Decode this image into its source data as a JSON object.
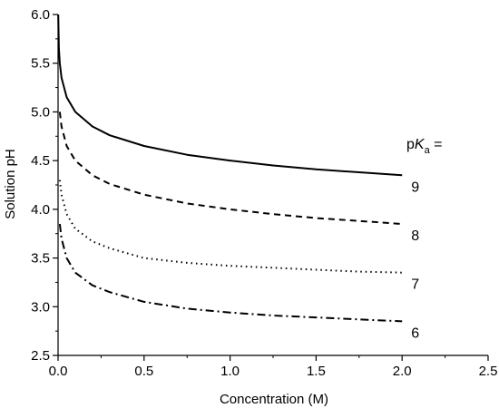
{
  "chart_data": {
    "type": "line",
    "title": "",
    "xlabel": "Concentration (M)",
    "ylabel": "Solution pH",
    "xlim": [
      0,
      2.5
    ],
    "ylim": [
      2.5,
      6.0
    ],
    "x_ticks": [
      "0.0",
      "0.5",
      "1.0",
      "1.5",
      "2.0",
      "2.5"
    ],
    "y_ticks": [
      "2.5",
      "3.0",
      "3.5",
      "4.0",
      "4.5",
      "5.0",
      "5.5",
      "6.0"
    ],
    "grid": false,
    "legend": {
      "prefix": "p",
      "italic": "K",
      "subscript": "a",
      "suffix": " ="
    },
    "series": [
      {
        "name": "9",
        "line_style": "solid",
        "x": [
          0.001,
          0.005,
          0.01,
          0.02,
          0.05,
          0.1,
          0.2,
          0.3,
          0.5,
          0.75,
          1.0,
          1.25,
          1.5,
          1.75,
          2.0
        ],
        "y": [
          6.0,
          5.65,
          5.5,
          5.35,
          5.15,
          5.0,
          4.85,
          4.76,
          4.65,
          4.56,
          4.5,
          4.45,
          4.41,
          4.38,
          4.35
        ]
      },
      {
        "name": "8",
        "line_style": "dashed",
        "x": [
          0.01,
          0.02,
          0.05,
          0.1,
          0.2,
          0.3,
          0.5,
          0.75,
          1.0,
          1.25,
          1.5,
          1.75,
          2.0
        ],
        "y": [
          5.0,
          4.85,
          4.65,
          4.5,
          4.35,
          4.26,
          4.15,
          4.06,
          4.0,
          3.95,
          3.91,
          3.88,
          3.85
        ]
      },
      {
        "name": "7",
        "line_style": "dotted",
        "x": [
          0.01,
          0.02,
          0.05,
          0.1,
          0.2,
          0.3,
          0.5,
          0.75,
          1.0,
          1.25,
          1.5,
          1.75,
          2.0
        ],
        "y": [
          4.3,
          4.15,
          3.95,
          3.8,
          3.67,
          3.6,
          3.5,
          3.45,
          3.42,
          3.4,
          3.38,
          3.36,
          3.35
        ]
      },
      {
        "name": "6",
        "line_style": "dashdot",
        "x": [
          0.01,
          0.02,
          0.05,
          0.1,
          0.2,
          0.3,
          0.5,
          0.75,
          1.0,
          1.25,
          1.5,
          1.75,
          2.0
        ],
        "y": [
          3.85,
          3.7,
          3.5,
          3.35,
          3.22,
          3.15,
          3.05,
          2.98,
          2.94,
          2.91,
          2.89,
          2.87,
          2.85
        ]
      }
    ]
  }
}
